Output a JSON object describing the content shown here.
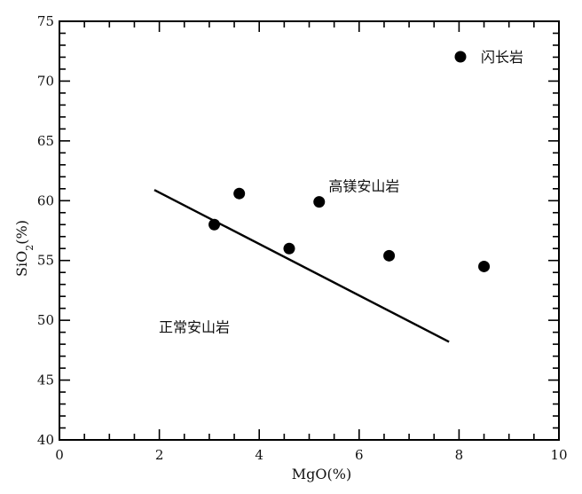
{
  "chart_data": {
    "type": "scatter",
    "xlabel": "MgO(%)",
    "ylabel": "SiO2(%)",
    "xlim": [
      0,
      10
    ],
    "ylim": [
      40,
      75
    ],
    "x_ticks": [
      0,
      2,
      4,
      6,
      8,
      10
    ],
    "y_ticks": [
      40,
      45,
      50,
      55,
      60,
      65,
      70,
      75
    ],
    "x_tick_labels": [
      "0",
      "2",
      "4",
      "6",
      "8",
      "10"
    ],
    "y_tick_labels": [
      "40",
      "45",
      "50",
      "55",
      "60",
      "65",
      "70",
      "75"
    ],
    "grid": false,
    "legend_position": "top-right",
    "series": [
      {
        "name": "闪长岩",
        "color": "#000000",
        "points": [
          {
            "x": 3.1,
            "y": 58.0
          },
          {
            "x": 3.6,
            "y": 60.6
          },
          {
            "x": 4.6,
            "y": 56.0
          },
          {
            "x": 5.2,
            "y": 59.9
          },
          {
            "x": 6.6,
            "y": 55.4
          },
          {
            "x": 8.5,
            "y": 54.5
          }
        ]
      }
    ],
    "boundary_line": [
      {
        "x": 1.9,
        "y": 60.9
      },
      {
        "x": 7.8,
        "y": 48.2
      }
    ],
    "region_labels": [
      {
        "text": "高镁安山岩",
        "x": 6.1,
        "y": 60.8
      },
      {
        "text": "正常安山岩",
        "x": 2.7,
        "y": 49.0
      }
    ]
  }
}
